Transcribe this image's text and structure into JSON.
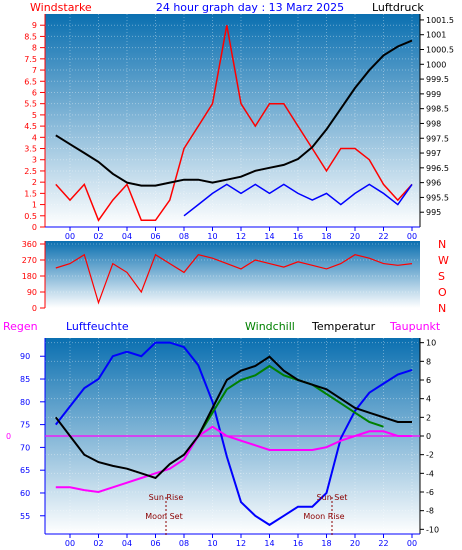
{
  "header": {
    "title": "24 hour graph day : 13 Marz 2025",
    "left_label": "Windstarke",
    "right_label": "Luftdruck"
  },
  "wind_dir_labels": [
    "N",
    "W",
    "S",
    "O",
    "N"
  ],
  "bottom_labels": {
    "regen": "Regen",
    "luftfeuchte": "Luftfeuchte",
    "windchill": "Windchill",
    "temperatur": "Temperatur",
    "taupunkt": "Taupunkt"
  },
  "events": {
    "sun_rise": "Sun Rise",
    "sun_set": "Sun Set",
    "moon_set": "Moon Set",
    "moon_rise": "Moon Rise"
  },
  "colors": {
    "wind_axis": "#ff0000",
    "pressure": "#000000",
    "humidity": "#0000ff",
    "temperature": "#000000",
    "windchill": "#008000",
    "dewpoint": "#ff00ff",
    "regen": "#ff00ff",
    "windchill_label": "#008000",
    "bg_top": "#0a6fb0",
    "bg_bottom": "#ffffff"
  },
  "chart_data": [
    {
      "type": "line",
      "name_panel": "wind-pressure",
      "xlabel_ticks": [
        "00",
        "02",
        "04",
        "06",
        "08",
        "10",
        "12",
        "14",
        "16",
        "18",
        "20",
        "22",
        "00"
      ],
      "y_left": {
        "label": "Windstarke",
        "ticks": [
          "0",
          "0.5",
          "1",
          "1.5",
          "2",
          "2.5",
          "3",
          "3.5",
          "4",
          "4.5",
          "5",
          "5.5",
          "6",
          "6.5",
          "7",
          "7.5",
          "8",
          "8.5",
          "9"
        ],
        "range": [
          0,
          9.5
        ]
      },
      "y_right": {
        "label": "Luftdruck",
        "ticks": [
          "995",
          "995.5",
          "996",
          "996.5",
          "997",
          "997.5",
          "998",
          "998.5",
          "999",
          "999.5",
          "1000",
          "1000.5",
          "1001",
          "1001.5"
        ],
        "range": [
          994.5,
          1001.7
        ]
      },
      "pressure": {
        "x": [
          -1,
          0,
          1,
          2,
          3,
          4,
          5,
          6,
          7,
          8,
          9,
          10,
          11,
          12,
          13,
          14,
          15,
          16,
          17,
          18,
          19,
          20,
          21,
          22,
          23,
          24
        ],
        "y": [
          997.6,
          997.3,
          997.0,
          996.7,
          996.3,
          996.0,
          995.9,
          995.9,
          996.0,
          996.1,
          996.1,
          996.0,
          996.1,
          996.2,
          996.4,
          996.5,
          996.6,
          996.8,
          997.2,
          997.8,
          998.5,
          999.2,
          999.8,
          1000.3,
          1000.6,
          1000.8
        ]
      },
      "wind_gust": {
        "x": [
          -1,
          0,
          1,
          2,
          3,
          4,
          5,
          6,
          7,
          8,
          9,
          10,
          11,
          12,
          13,
          14,
          15,
          16,
          17,
          18,
          19,
          20,
          21,
          22,
          23,
          24
        ],
        "y": [
          1.9,
          1.2,
          1.9,
          0.3,
          1.2,
          1.9,
          0.3,
          0.3,
          1.2,
          3.5,
          4.5,
          5.5,
          9.0,
          5.5,
          4.5,
          5.5,
          5.5,
          4.5,
          3.5,
          2.5,
          3.5,
          3.5,
          3.0,
          1.9,
          1.2,
          1.9
        ]
      },
      "wind_avg": {
        "x": [
          8,
          9,
          10,
          11,
          12,
          13,
          14,
          15,
          16,
          17,
          18,
          19,
          20,
          21,
          22,
          23,
          24
        ],
        "y": [
          0.5,
          1.0,
          1.5,
          1.9,
          1.5,
          1.9,
          1.5,
          1.9,
          1.5,
          1.2,
          1.5,
          1.0,
          1.5,
          1.9,
          1.5,
          1.0,
          1.9
        ]
      }
    },
    {
      "type": "line",
      "name_panel": "wind-direction",
      "y_ticks": [
        "0",
        "90",
        "180",
        "270",
        "360"
      ],
      "range": [
        0,
        360
      ],
      "x": [
        -1,
        0,
        1,
        2,
        3,
        4,
        5,
        6,
        7,
        8,
        9,
        10,
        11,
        12,
        13,
        14,
        15,
        16,
        17,
        18,
        19,
        20,
        21,
        22,
        23,
        24
      ],
      "y": [
        225,
        250,
        300,
        30,
        250,
        200,
        90,
        300,
        250,
        200,
        300,
        280,
        250,
        220,
        270,
        250,
        230,
        260,
        240,
        220,
        250,
        300,
        280,
        250,
        240,
        250
      ]
    },
    {
      "type": "line",
      "name_panel": "temp-humidity",
      "y_left": {
        "label": "Luftfeuchte",
        "ticks": [
          "55",
          "60",
          "65",
          "70",
          "75",
          "80",
          "85",
          "90"
        ],
        "range": [
          51,
          94
        ]
      },
      "y_right": {
        "label": "Temperatur",
        "ticks": [
          "-10",
          "-8",
          "-6",
          "-4",
          "-2",
          "0",
          "2",
          "4",
          "6",
          "8",
          "10"
        ],
        "range": [
          -10.5,
          10.5
        ]
      },
      "regen_value": "0",
      "humidity": {
        "x": [
          -1,
          0,
          1,
          2,
          3,
          4,
          5,
          6,
          7,
          8,
          9,
          10,
          11,
          12,
          13,
          14,
          15,
          16,
          17,
          18,
          19,
          20,
          21,
          22,
          23,
          24
        ],
        "y": [
          75,
          79,
          83,
          85,
          90,
          91,
          90,
          93,
          93,
          92,
          88,
          80,
          68,
          58,
          55,
          53,
          55,
          57,
          57,
          60,
          72,
          78,
          82,
          84,
          86,
          87
        ]
      },
      "temperature": {
        "x": [
          -1,
          0,
          1,
          2,
          3,
          4,
          5,
          6,
          7,
          8,
          9,
          10,
          11,
          12,
          13,
          14,
          15,
          16,
          17,
          18,
          19,
          20,
          21,
          22,
          23,
          24
        ],
        "y": [
          2.0,
          0.0,
          -2.0,
          -2.8,
          -3.2,
          -3.5,
          -4.0,
          -4.5,
          -3.0,
          -2.0,
          0.0,
          3.0,
          6.0,
          7.0,
          7.5,
          8.5,
          7.0,
          6.0,
          5.5,
          5.0,
          4.0,
          3.0,
          2.5,
          2.0,
          1.5,
          1.5
        ]
      },
      "windchill": {
        "x": [
          9,
          10,
          11,
          12,
          13,
          14,
          15,
          16,
          17,
          18,
          19,
          20,
          21,
          22
        ],
        "y": [
          0.0,
          2.5,
          5.0,
          6.0,
          6.5,
          7.5,
          6.5,
          6.0,
          5.5,
          4.5,
          3.5,
          2.5,
          1.5,
          1.0
        ]
      },
      "dewpoint": {
        "x": [
          -1,
          0,
          1,
          2,
          3,
          4,
          5,
          6,
          7,
          8,
          9,
          10,
          11,
          12,
          13,
          14,
          15,
          16,
          17,
          18,
          19,
          20,
          21,
          22,
          23,
          24
        ],
        "y": [
          -5.5,
          -5.5,
          -5.8,
          -6.0,
          -5.5,
          -5.0,
          -4.5,
          -4.0,
          -3.5,
          -2.5,
          0.0,
          1.0,
          0.0,
          -0.5,
          -1.0,
          -1.5,
          -1.5,
          -1.5,
          -1.5,
          -1.2,
          -0.5,
          0.0,
          0.5,
          0.5,
          0.0,
          0.0
        ]
      }
    }
  ]
}
